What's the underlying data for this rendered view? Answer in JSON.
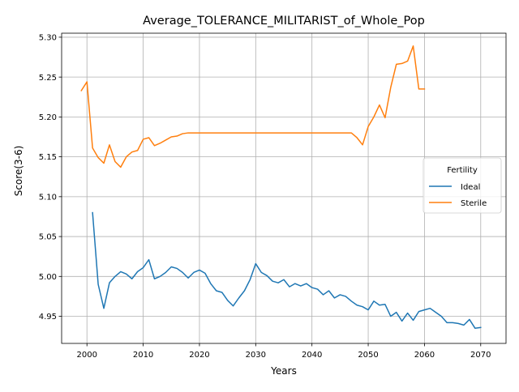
{
  "chart_data": {
    "type": "line",
    "title": "Average_TOLERANCE_MILITARIST_of_Whole_Pop",
    "xlabel": "Years",
    "ylabel": "Score(3-6)",
    "xlim": [
      1995.5,
      2074.5
    ],
    "ylim": [
      4.916,
      5.305
    ],
    "xticks": [
      2000,
      2010,
      2020,
      2030,
      2040,
      2050,
      2060,
      2070
    ],
    "yticks": [
      4.95,
      5.0,
      5.05,
      5.1,
      5.15,
      5.2,
      5.25,
      5.3
    ],
    "ytick_labels": [
      "4.95",
      "5.00",
      "5.05",
      "5.10",
      "5.15",
      "5.20",
      "5.25",
      "5.30"
    ],
    "grid": true,
    "legend": {
      "title": "Fertility",
      "placement": "center-right"
    },
    "series": [
      {
        "name": "Ideal",
        "color": "#1f77b4",
        "x": [
          2001,
          2002,
          2003,
          2004,
          2005,
          2006,
          2007,
          2008,
          2009,
          2010,
          2011,
          2012,
          2013,
          2014,
          2015,
          2016,
          2017,
          2018,
          2019,
          2020,
          2021,
          2022,
          2023,
          2024,
          2025,
          2026,
          2027,
          2028,
          2029,
          2030,
          2031,
          2032,
          2033,
          2034,
          2035,
          2036,
          2037,
          2038,
          2039,
          2040,
          2041,
          2042,
          2043,
          2044,
          2045,
          2046,
          2047,
          2048,
          2049,
          2050,
          2051,
          2052,
          2053,
          2054,
          2055,
          2056,
          2057,
          2058,
          2059,
          2060,
          2061,
          2062,
          2063,
          2064,
          2065,
          2066,
          2067,
          2068,
          2069,
          2070
        ],
        "values": [
          5.08,
          4.99,
          4.96,
          4.992,
          5.0,
          5.006,
          5.003,
          4.997,
          5.006,
          5.011,
          5.021,
          4.997,
          5.0,
          5.005,
          5.012,
          5.01,
          5.005,
          4.998,
          5.005,
          5.008,
          5.004,
          4.991,
          4.982,
          4.98,
          4.97,
          4.963,
          4.973,
          4.982,
          4.996,
          5.016,
          5.005,
          5.001,
          4.994,
          4.992,
          4.996,
          4.987,
          4.991,
          4.988,
          4.991,
          4.986,
          4.984,
          4.977,
          4.982,
          4.973,
          4.977,
          4.975,
          4.969,
          4.964,
          4.962,
          4.958,
          4.969,
          4.964,
          4.965,
          4.95,
          4.955,
          4.944,
          4.954,
          4.945,
          4.956,
          4.958,
          4.96,
          4.955,
          4.95,
          4.942,
          4.942,
          4.941,
          4.939,
          4.946,
          4.935,
          4.936
        ]
      },
      {
        "name": "Sterile",
        "color": "#ff7f0e",
        "x": [
          1999,
          2000,
          2001,
          2002,
          2003,
          2004,
          2005,
          2006,
          2007,
          2008,
          2009,
          2010,
          2011,
          2012,
          2013,
          2014,
          2015,
          2016,
          2017,
          2018,
          2019,
          2020,
          2021,
          2022,
          2023,
          2024,
          2025,
          2026,
          2027,
          2028,
          2029,
          2030,
          2031,
          2032,
          2033,
          2034,
          2035,
          2036,
          2037,
          2038,
          2039,
          2040,
          2041,
          2042,
          2043,
          2044,
          2045,
          2046,
          2047,
          2048,
          2049,
          2050,
          2051,
          2052,
          2053,
          2054,
          2055,
          2056,
          2057,
          2058,
          2059,
          2060
        ],
        "values": [
          5.233,
          5.244,
          5.161,
          5.149,
          5.142,
          5.165,
          5.144,
          5.137,
          5.15,
          5.156,
          5.158,
          5.172,
          5.174,
          5.164,
          5.167,
          5.171,
          5.175,
          5.176,
          5.179,
          5.18,
          5.18,
          5.18,
          5.18,
          5.18,
          5.18,
          5.18,
          5.18,
          5.18,
          5.18,
          5.18,
          5.18,
          5.18,
          5.18,
          5.18,
          5.18,
          5.18,
          5.18,
          5.18,
          5.18,
          5.18,
          5.18,
          5.18,
          5.18,
          5.18,
          5.18,
          5.18,
          5.18,
          5.18,
          5.18,
          5.174,
          5.165,
          5.188,
          5.2,
          5.215,
          5.199,
          5.237,
          5.266,
          5.267,
          5.27,
          5.289,
          5.235,
          5.235
        ]
      }
    ]
  }
}
